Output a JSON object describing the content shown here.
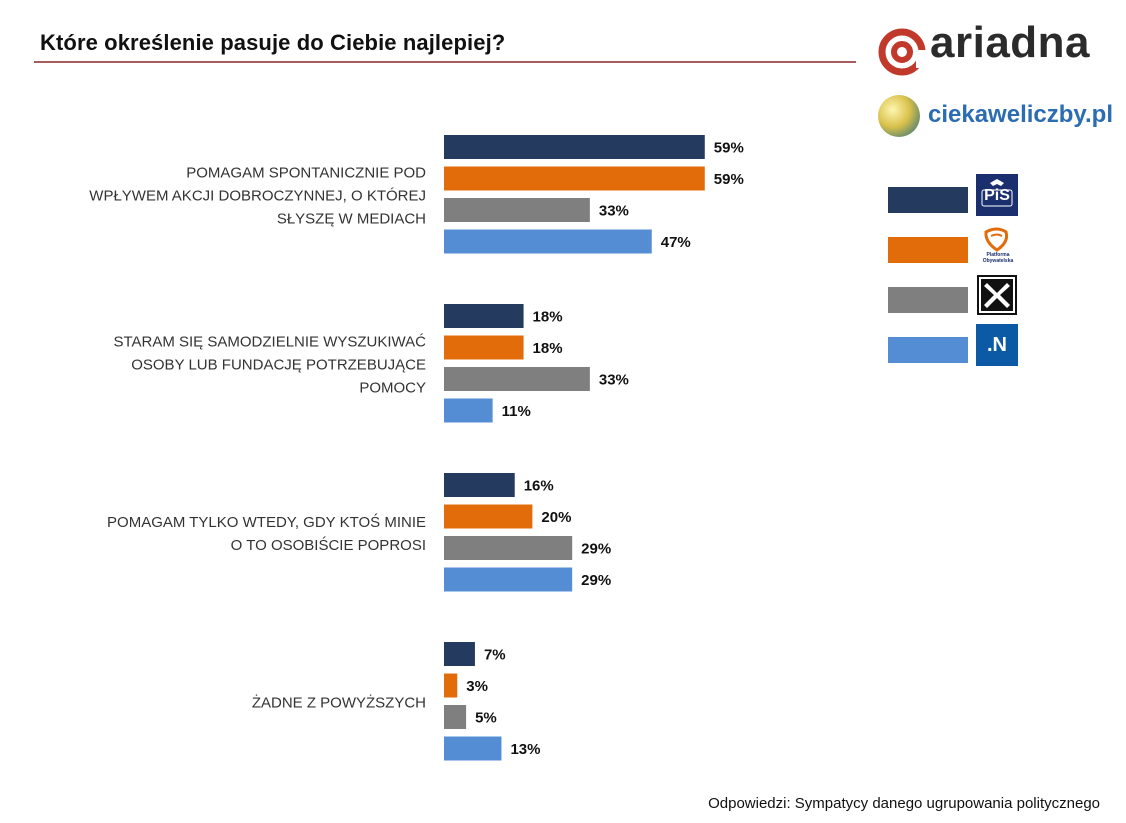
{
  "header": {
    "title": "Które określenie pasuje do Ciebie najlepiej?"
  },
  "branding": {
    "ariadna": "ariadna",
    "ciekaweliczby": "ciekaweliczby.pl"
  },
  "footer": {
    "note": "Odpowiedzi: Sympatycy danego ugrupowania politycznego"
  },
  "legend": [
    {
      "color": "#243a5e",
      "logo_text": "PiS",
      "logo_icon": "pis-logo-icon"
    },
    {
      "color": "#e36c0a",
      "logo_text": "Platforma Obywatelska",
      "logo_icon": "po-logo-icon"
    },
    {
      "color": "#7f7f7f",
      "logo_text": "",
      "logo_icon": "kukiz-logo-icon"
    },
    {
      "color": "#548dd4",
      "logo_text": ".N",
      "logo_icon": "nowoczesna-logo-icon"
    }
  ],
  "chart_data": {
    "type": "bar",
    "orientation": "horizontal",
    "categories": [
      [
        "POMAGAM SPONTANICZNIE POD",
        "WPŁYWEM AKCJI DOBROCZYNNEJ, O KTÓREJ",
        "SŁYSZĘ W MEDIACH"
      ],
      [
        "STARAM SIĘ SAMODZIELNIE WYSZUKIWAĆ",
        "OSOBY LUB FUNDACJĘ POTRZEBUJĄCE",
        "POMOCY"
      ],
      [
        "POMAGAM TYLKO WTEDY, GDY KTOŚ MINIE",
        "O TO OSOBIŚCIE POPROSI"
      ],
      [
        "ŻADNE Z POWYŻSZYCH"
      ]
    ],
    "series": [
      {
        "color": "#243a5e",
        "values": [
          59,
          18,
          16,
          7
        ]
      },
      {
        "color": "#e36c0a",
        "values": [
          59,
          18,
          20,
          3
        ]
      },
      {
        "color": "#7f7f7f",
        "values": [
          33,
          33,
          29,
          5
        ]
      },
      {
        "color": "#548dd4",
        "values": [
          47,
          11,
          29,
          13
        ]
      }
    ],
    "value_suffix": "%",
    "xlim": [
      0,
      100
    ],
    "grid": false,
    "legend_position": "right"
  }
}
